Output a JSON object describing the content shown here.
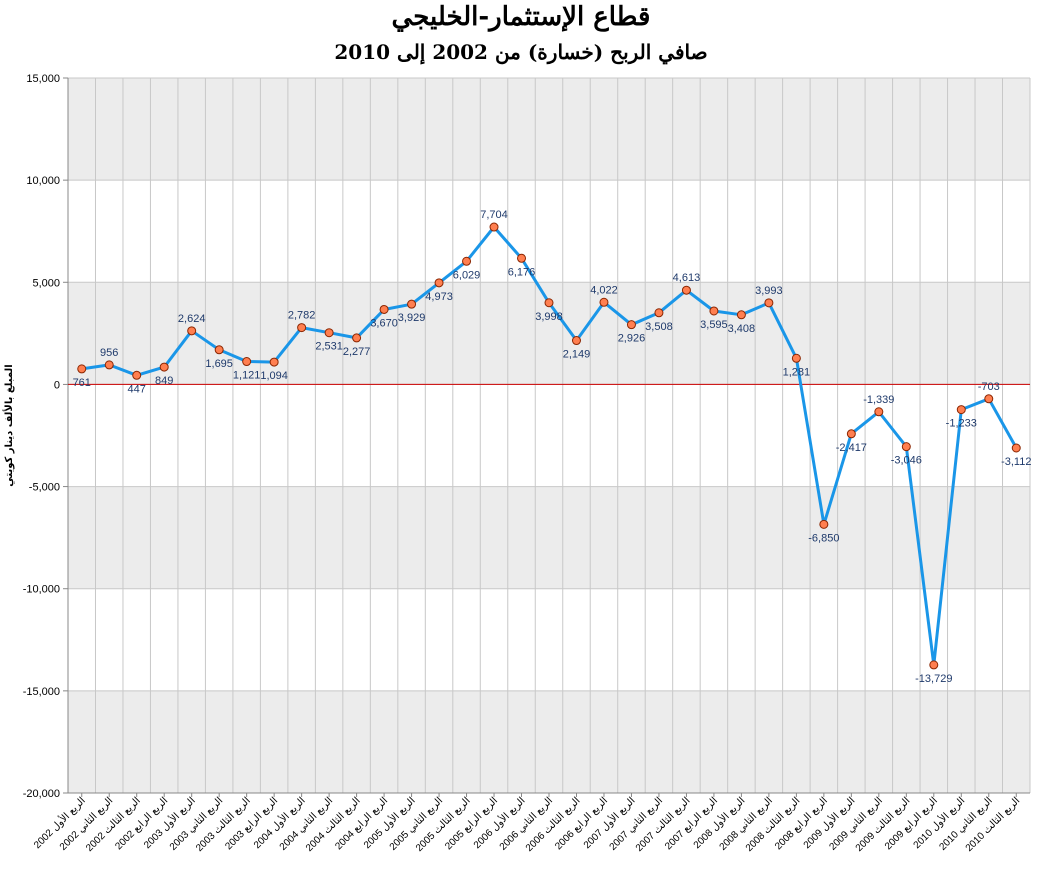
{
  "title": "قطاع الإستثمار-الخليجي",
  "subtitle": "صافي الربح (خسارة) من 2002 إلى 2010",
  "colors": {
    "line": "#1a96e8",
    "marker_fill": "#ff7f50",
    "marker_stroke": "#8b2500",
    "zero_line": "#cc0000",
    "band": "#ececec",
    "grid": "#c8c8c8",
    "label": "#1f3a6b"
  },
  "chart_data": {
    "type": "line",
    "title": "قطاع الإستثمار-الخليجي",
    "subtitle": "صافي الربح (خسارة) من 2002 إلى 2010",
    "ylabel": "المبلغ بالألف دينار كويتي",
    "xlabel": "",
    "ylim": [
      -20000,
      15000
    ],
    "yticks": [
      15000,
      10000,
      5000,
      0,
      -5000,
      -10000,
      -15000,
      -20000
    ],
    "ytick_labels": [
      "15,000",
      "10,000",
      "5,000",
      "0",
      "-5,000",
      "-10,000",
      "-15,000",
      "-20,000"
    ],
    "grid": true,
    "legend": "none",
    "categories": [
      "الربع الأول 2002",
      "الربع الثاني 2002",
      "الربع الثالث 2002",
      "الربع الرابع 2002",
      "الربع الأول 2003",
      "الربع الثاني 2003",
      "الربع الثالث 2003",
      "الربع الرابع 2003",
      "الربع الأول 2004",
      "الربع الثاني 2004",
      "الربع الثالث 2004",
      "الربع الرابع 2004",
      "الربع الأول 2005",
      "الربع الثاني 2005",
      "الربع الثالث 2005",
      "الربع الرابع 2005",
      "الربع الأول 2006",
      "الربع الثاني 2006",
      "الربع الثالث 2006",
      "الربع الرابع 2006",
      "الربع الأول 2007",
      "الربع الثاني 2007",
      "الربع الثالث 2007",
      "الربع الرابع 2007",
      "الربع الأول 2008",
      "الربع الثاني 2008",
      "الربع الثالث 2008",
      "الربع الرابع 2008",
      "الربع الأول 2009",
      "الربع الثاني 2009",
      "الربع الثالث 2009",
      "الربع الرابع 2009",
      "الربع الأول 2010",
      "الربع الثاني 2010",
      "الربع الثالث 2010"
    ],
    "values": [
      761,
      956,
      447,
      849,
      2624,
      1695,
      1121,
      1094,
      2782,
      2531,
      2277,
      3670,
      3929,
      4973,
      6029,
      7704,
      6176,
      3998,
      2149,
      4022,
      2926,
      3508,
      4613,
      3595,
      3408,
      3993,
      1281,
      -6850,
      -2417,
      -1339,
      -3046,
      -13729,
      -1233,
      -703,
      -3112
    ],
    "value_labels": [
      "761",
      "956",
      "447",
      "849",
      "2,624",
      "1,695",
      "1,121",
      "1,094",
      "2,782",
      "2,531",
      "2,277",
      "3,670",
      "3,929",
      "4,973",
      "6,029",
      "7,704",
      "6,176",
      "3,998",
      "2,149",
      "4,022",
      "2,926",
      "3,508",
      "4,613",
      "3,595",
      "3,408",
      "3,993",
      "1,281",
      "-6,850",
      "-2,417",
      "-1,339",
      "-3,046",
      "-13,729",
      "-1,233",
      "-703",
      "-3,112"
    ]
  }
}
